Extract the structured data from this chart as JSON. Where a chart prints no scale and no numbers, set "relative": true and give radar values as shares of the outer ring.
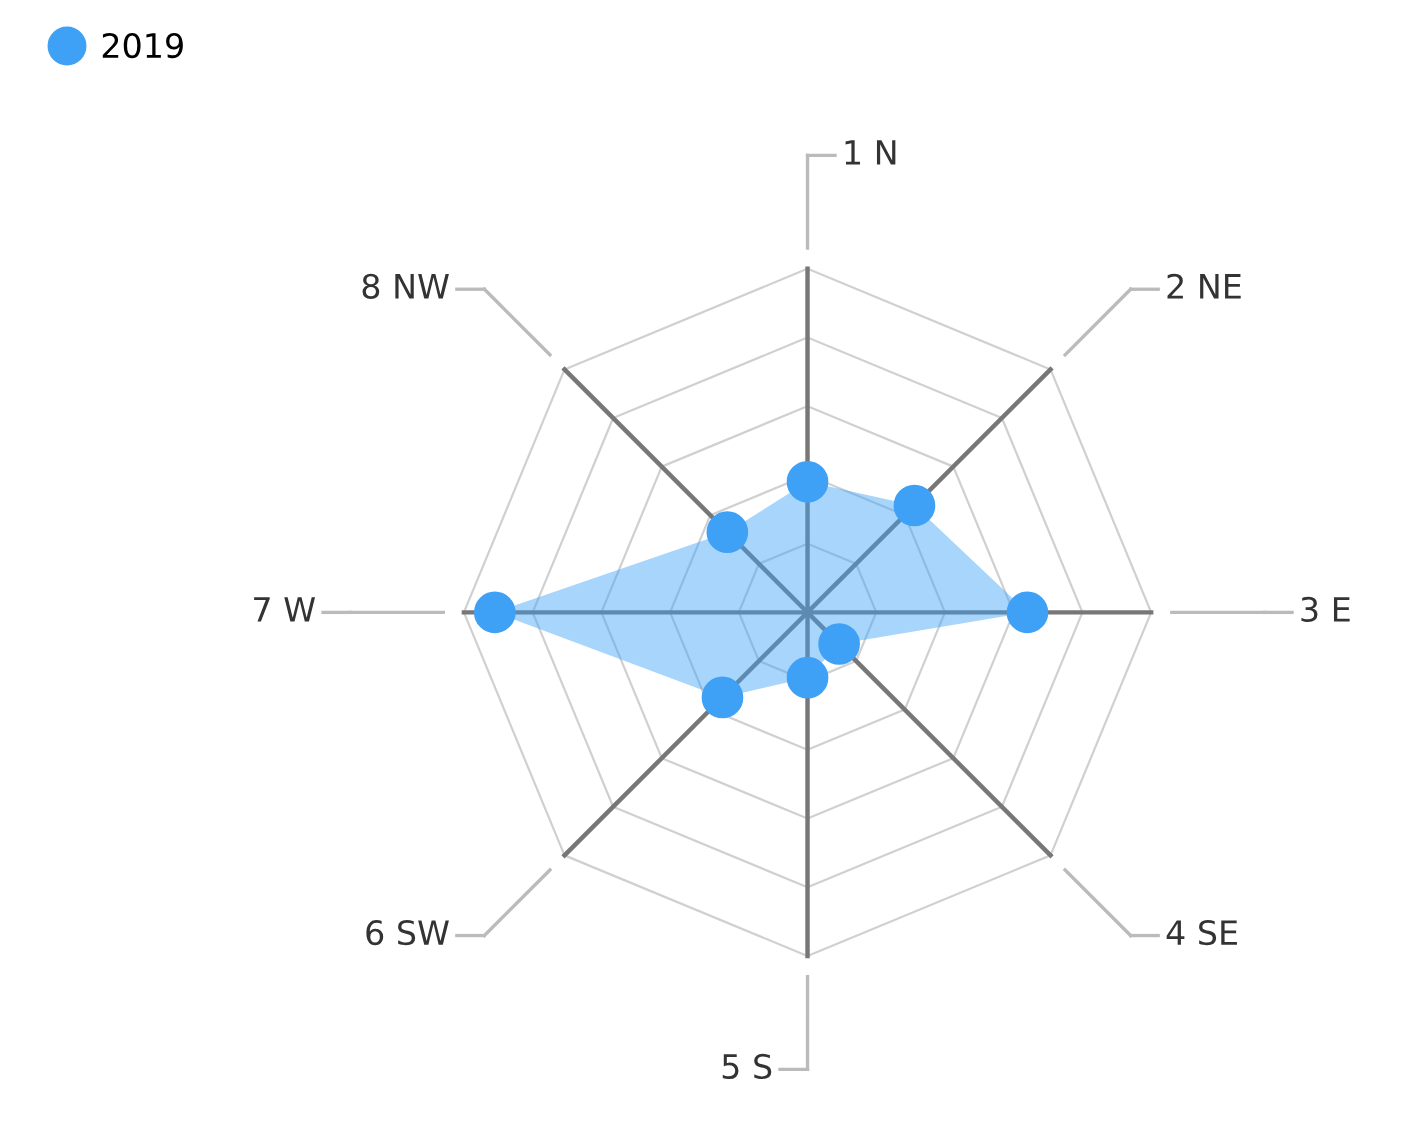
{
  "chart_data": {
    "type": "radar",
    "relative": true,
    "categories": [
      "1 N",
      "2 NE",
      "3 E",
      "4 SE",
      "5 S",
      "6 SW",
      "7 W",
      "8 NW"
    ],
    "series": [
      {
        "name": "2019",
        "color": "#3fa1f6",
        "values": [
          0.38,
          0.44,
          0.64,
          0.13,
          0.19,
          0.35,
          0.91,
          0.33
        ]
      }
    ],
    "grid": true,
    "legend": "top left",
    "marker": "circle"
  }
}
